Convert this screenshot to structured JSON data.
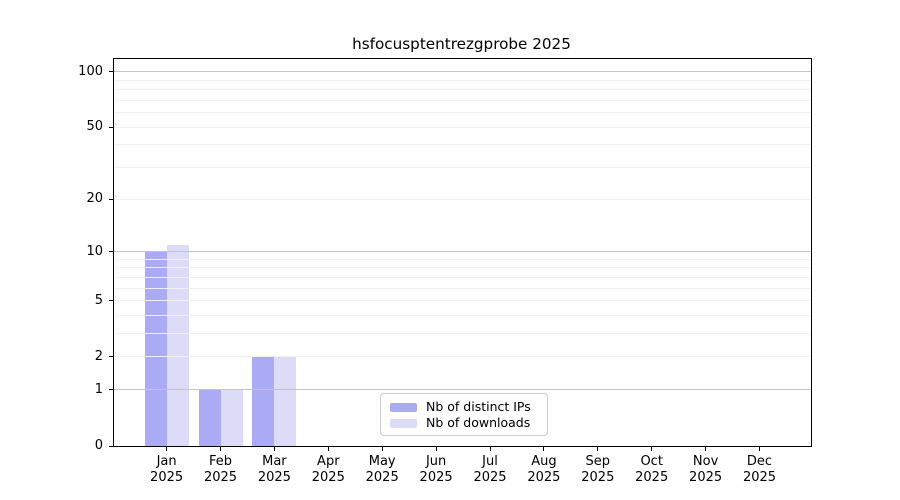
{
  "figure": {
    "background": "#ffffff"
  },
  "chart_data": {
    "type": "bar",
    "title": "hsfocusptentrezgprobe 2025",
    "categories": [
      "Jan",
      "Feb",
      "Mar",
      "Apr",
      "May",
      "Jun",
      "Jul",
      "Aug",
      "Sep",
      "Oct",
      "Nov",
      "Dec"
    ],
    "x_sublabel_year": "2025",
    "series": [
      {
        "name": "Nb of distinct IPs",
        "color": "#aaaaf5",
        "values": [
          10,
          1,
          2,
          0,
          0,
          0,
          0,
          0,
          0,
          0,
          0,
          0
        ]
      },
      {
        "name": "Nb of downloads",
        "color": "#dcdcf8",
        "values": [
          11,
          1,
          2,
          0,
          0,
          0,
          0,
          0,
          0,
          0,
          0,
          0
        ]
      }
    ],
    "yticks": [
      0,
      1,
      2,
      5,
      10,
      20,
      50,
      100
    ],
    "scale": "log1p",
    "ylim": [
      0,
      117
    ],
    "grid": {
      "orientation": "horizontal",
      "major_values": [
        1,
        10,
        100
      ],
      "minor_values": [
        2,
        3,
        4,
        5,
        6,
        7,
        8,
        9,
        20,
        30,
        40,
        50,
        60,
        70,
        80,
        90
      ],
      "major_color": "#c4c4c4",
      "minor_color": "#f0f0f0"
    },
    "legend": {
      "position": "lower center inside",
      "border_color": "#cccccc"
    },
    "spine_color": "#000000"
  }
}
